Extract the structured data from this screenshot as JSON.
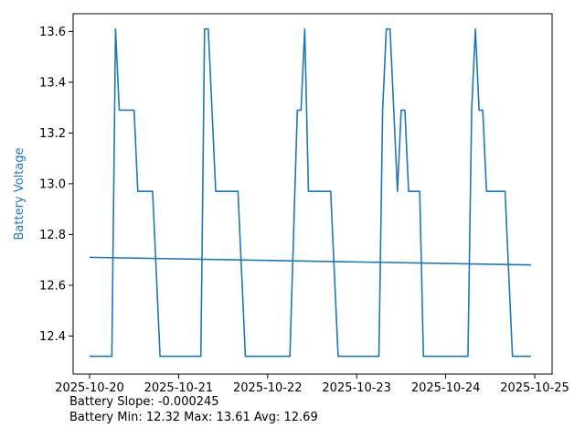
{
  "chart_data": {
    "type": "line",
    "ylabel": "Battery Voltage",
    "ylabel_color": "#1f77b4",
    "line_color": "#1f77b4",
    "xlim": [
      "2025-10-20T00:00",
      "2025-10-25T00:00"
    ],
    "ylim": [
      12.25,
      13.67
    ],
    "x_tick_labels": [
      "2025-10-20",
      "2025-10-21",
      "2025-10-22",
      "2025-10-23",
      "2025-10-24",
      "2025-10-25"
    ],
    "y_tick_labels": [
      "12.4",
      "12.6",
      "12.8",
      "13.0",
      "13.2",
      "13.4",
      "13.6"
    ],
    "grid": false,
    "series": [
      {
        "values": [
          [
            "2025-10-20T00:00",
            12.32
          ],
          [
            "2025-10-20T06:00",
            12.32
          ],
          [
            "2025-10-20T07:00",
            13.61
          ],
          [
            "2025-10-20T08:00",
            13.29
          ],
          [
            "2025-10-20T12:00",
            13.29
          ],
          [
            "2025-10-20T13:00",
            12.97
          ],
          [
            "2025-10-20T17:00",
            12.97
          ],
          [
            "2025-10-20T19:00",
            12.32
          ],
          [
            "2025-10-21T06:00",
            12.32
          ],
          [
            "2025-10-21T07:00",
            13.61
          ],
          [
            "2025-10-21T08:00",
            13.61
          ],
          [
            "2025-10-21T10:00",
            12.97
          ],
          [
            "2025-10-21T16:00",
            12.97
          ],
          [
            "2025-10-21T18:00",
            12.32
          ],
          [
            "2025-10-22T06:00",
            12.32
          ],
          [
            "2025-10-22T08:00",
            13.29
          ],
          [
            "2025-10-22T09:00",
            13.29
          ],
          [
            "2025-10-22T10:00",
            13.61
          ],
          [
            "2025-10-22T11:00",
            12.97
          ],
          [
            "2025-10-22T17:00",
            12.97
          ],
          [
            "2025-10-22T19:00",
            12.32
          ],
          [
            "2025-10-23T06:00",
            12.32
          ],
          [
            "2025-10-23T07:00",
            13.29
          ],
          [
            "2025-10-23T08:00",
            13.61
          ],
          [
            "2025-10-23T09:00",
            13.61
          ],
          [
            "2025-10-23T11:00",
            12.97
          ],
          [
            "2025-10-23T12:00",
            13.29
          ],
          [
            "2025-10-23T13:00",
            13.29
          ],
          [
            "2025-10-23T14:00",
            12.97
          ],
          [
            "2025-10-23T17:00",
            12.97
          ],
          [
            "2025-10-23T18:00",
            12.32
          ],
          [
            "2025-10-24T06:00",
            12.32
          ],
          [
            "2025-10-24T07:00",
            13.29
          ],
          [
            "2025-10-24T08:00",
            13.61
          ],
          [
            "2025-10-24T09:00",
            13.29
          ],
          [
            "2025-10-24T10:00",
            13.29
          ],
          [
            "2025-10-24T11:00",
            12.97
          ],
          [
            "2025-10-24T16:00",
            12.97
          ],
          [
            "2025-10-24T18:00",
            12.32
          ],
          [
            "2025-10-24T23:00",
            12.32
          ]
        ]
      },
      {
        "values": [
          [
            "2025-10-20T00:00",
            12.71
          ],
          [
            "2025-10-24T23:00",
            12.68
          ]
        ]
      }
    ]
  },
  "notes": {
    "slope": "Battery Slope: -0.000245",
    "stats": "Battery Min: 12.32 Max: 13.61 Avg: 12.69"
  }
}
